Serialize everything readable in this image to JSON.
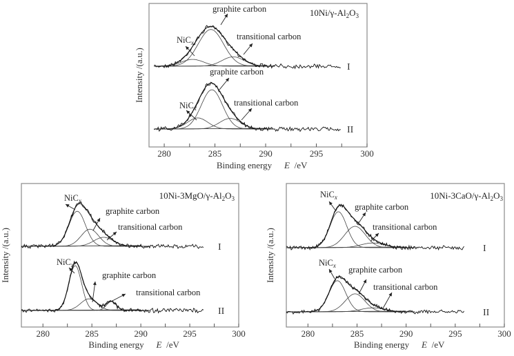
{
  "chart_data": [
    {
      "type": "line",
      "id": "top",
      "sample": "10Ni/γ-Al",
      "sample_sub1": "2",
      "sample_mid": "O",
      "sample_sub2": "3",
      "xlabel": "Binding energy",
      "xlabel_var": "E",
      "xlabel_unit": "/eV",
      "ylabel": "Intensity /(a.u.)",
      "xlim": [
        278.5,
        300
      ],
      "xticks": [
        280,
        285,
        290,
        295,
        300
      ],
      "xtick_labels": [
        "280",
        "285",
        "290",
        "295",
        "300"
      ],
      "minor_ticks": [
        282.5,
        287.5,
        292.5,
        297.5
      ],
      "grid": false,
      "spectra": [
        {
          "label": "I",
          "data_range": [
            279,
            297.5
          ],
          "components": [
            {
              "name": "NiCx",
              "center": 282.8,
              "height": 0.16,
              "sigma": 1.1
            },
            {
              "name": "graphite carbon",
              "center": 284.6,
              "height": 0.86,
              "sigma": 1.25
            },
            {
              "name": "transitional carbon",
              "center": 286.8,
              "height": 0.22,
              "sigma": 1.1
            }
          ],
          "envelope_peak": 1.0,
          "annotations": [
            {
              "text": "graphite carbon",
              "target_x": 284.8
            },
            {
              "text": "NiCx",
              "target_x": 283.0
            },
            {
              "text": "transitional carbon",
              "target_x": 287.4
            }
          ]
        },
        {
          "label": "II",
          "data_range": [
            279,
            297.5
          ],
          "components": [
            {
              "name": "NiCx",
              "center": 283.3,
              "height": 0.24,
              "sigma": 1.0
            },
            {
              "name": "graphite carbon",
              "center": 284.7,
              "height": 0.85,
              "sigma": 1.05
            },
            {
              "name": "transitional carbon",
              "center": 286.5,
              "height": 0.23,
              "sigma": 1.05
            }
          ],
          "envelope_peak": 1.0,
          "annotations": [
            {
              "text": "graphite carbon",
              "target_x": 284.8
            },
            {
              "text": "NiCx",
              "target_x": 283.5
            },
            {
              "text": "transitional carbon",
              "target_x": 286.8
            }
          ]
        }
      ]
    },
    {
      "type": "line",
      "id": "bottom-left",
      "sample": "10Ni-3MgO/γ-Al",
      "sample_sub1": "2",
      "sample_mid": "O",
      "sample_sub2": "3",
      "xlabel": "Binding energy",
      "xlabel_var": "E",
      "xlabel_unit": "/eV",
      "ylabel": "Intensity /(a.u.)",
      "xlim": [
        277.8,
        300
      ],
      "xticks": [
        280,
        285,
        290,
        295,
        300
      ],
      "xtick_labels": [
        "280",
        "285",
        "290",
        "295",
        "300"
      ],
      "minor_ticks": [
        282.5,
        287.5,
        292.5,
        297.5
      ],
      "grid": false,
      "spectra": [
        {
          "label": "I",
          "data_range": [
            277.8,
            296.5
          ],
          "components": [
            {
              "name": "NiCx",
              "center": 283.5,
              "height": 0.82,
              "sigma": 0.85
            },
            {
              "name": "graphite carbon",
              "center": 284.8,
              "height": 0.4,
              "sigma": 0.9
            },
            {
              "name": "transitional carbon",
              "center": 286.2,
              "height": 0.21,
              "sigma": 1.0
            }
          ],
          "annotations": [
            {
              "text": "NiCx",
              "target_x": 283.3
            },
            {
              "text": "graphite carbon",
              "target_x": 285.0
            },
            {
              "text": "transitional carbon",
              "target_x": 286.3
            }
          ]
        },
        {
          "label": "II",
          "data_range": [
            277.8,
            296.5
          ],
          "components": [
            {
              "name": "NiCx",
              "center": 283.3,
              "height": 1.0,
              "sigma": 0.65
            },
            {
              "name": "graphite carbon",
              "center": 284.7,
              "height": 0.26,
              "sigma": 0.85
            },
            {
              "name": "transitional carbon",
              "center": 287.0,
              "height": 0.2,
              "sigma": 0.5
            }
          ],
          "annotations": [
            {
              "text": "NiCx",
              "target_x": 283.4
            },
            {
              "text": "graphite carbon",
              "target_x": 284.9
            },
            {
              "text": "transitional carbon",
              "target_x": 287.3
            }
          ]
        }
      ]
    },
    {
      "type": "line",
      "id": "bottom-right",
      "sample": "10Ni-3CaO/γ-Al",
      "sample_sub1": "2",
      "sample_mid": "O",
      "sample_sub2": "3",
      "xlabel": "Binding energy",
      "xlabel_var": "E",
      "xlabel_unit": "/eV",
      "ylabel": "Intensity /(a.u.)",
      "xlim": [
        277.8,
        300
      ],
      "xticks": [
        280,
        285,
        290,
        295,
        300
      ],
      "xtick_labels": [
        "280",
        "285",
        "290",
        "295",
        "300"
      ],
      "minor_ticks": [
        282.5,
        287.5,
        292.5,
        297.5
      ],
      "grid": false,
      "spectra": [
        {
          "label": "I",
          "data_range": [
            277.8,
            296
          ],
          "components": [
            {
              "name": "NiCx",
              "center": 283.1,
              "height": 0.84,
              "sigma": 0.85
            },
            {
              "name": "graphite carbon",
              "center": 284.8,
              "height": 0.5,
              "sigma": 1.05
            },
            {
              "name": "transitional carbon",
              "center": 286.6,
              "height": 0.11,
              "sigma": 1.2
            }
          ],
          "annotations": [
            {
              "text": "NiCx",
              "target_x": 283.0
            },
            {
              "text": "graphite carbon",
              "target_x": 285.0
            },
            {
              "text": "transitional carbon",
              "target_x": 286.5
            }
          ]
        },
        {
          "label": "II",
          "data_range": [
            277.8,
            296
          ],
          "components": [
            {
              "name": "NiCx",
              "center": 283.0,
              "height": 0.78,
              "sigma": 0.85
            },
            {
              "name": "graphite carbon",
              "center": 284.8,
              "height": 0.45,
              "sigma": 1.0
            },
            {
              "name": "transitional carbon",
              "center": 286.6,
              "height": 0.1,
              "sigma": 1.2
            }
          ],
          "annotations": [
            {
              "text": "NiCx",
              "target_x": 282.9
            },
            {
              "text": "graphite carbon",
              "target_x": 285.0
            },
            {
              "text": "transitional carbon",
              "target_x": 287.5
            }
          ]
        }
      ]
    }
  ]
}
